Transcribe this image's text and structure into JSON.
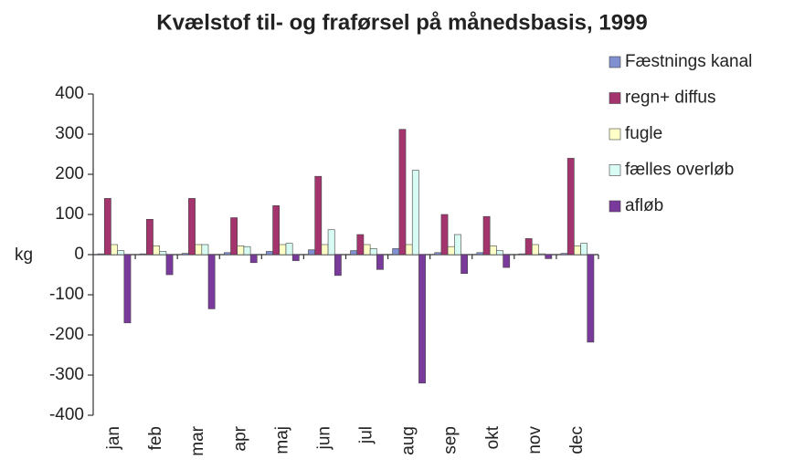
{
  "chart_data": {
    "type": "bar",
    "title": "Kvælstof til- og fraførsel på månedsbasis, 1999",
    "y_label": "kg",
    "categories": [
      "jan",
      "feb",
      "mar",
      "apr",
      "maj",
      "jun",
      "jul",
      "aug",
      "sep",
      "okt",
      "nov",
      "dec"
    ],
    "series": [
      {
        "name": "Fæstnings kanal",
        "color": "#8090d0",
        "values": [
          2,
          2,
          3,
          5,
          8,
          12,
          10,
          15,
          5,
          5,
          2,
          3
        ]
      },
      {
        "name": "regn+ diffus",
        "color": "#a3346e",
        "values": [
          140,
          88,
          140,
          92,
          122,
          195,
          50,
          312,
          100,
          95,
          40,
          240
        ]
      },
      {
        "name": "fugle",
        "color": "#ffffc8",
        "values": [
          25,
          22,
          25,
          22,
          25,
          25,
          25,
          25,
          20,
          22,
          25,
          22
        ]
      },
      {
        "name": "fælles overløb",
        "color": "#d8fbf4",
        "values": [
          10,
          8,
          25,
          20,
          28,
          62,
          15,
          210,
          50,
          10,
          2,
          28
        ]
      },
      {
        "name": "afløb",
        "color": "#7a3a9c",
        "values": [
          -170,
          -50,
          -135,
          -20,
          -15,
          -52,
          -37,
          -320,
          -47,
          -32,
          -10,
          -218
        ]
      }
    ],
    "ylim": [
      -400,
      400
    ],
    "yticks": [
      -400,
      -300,
      -200,
      -100,
      0,
      100,
      200,
      300,
      400
    ],
    "legend": "right"
  }
}
